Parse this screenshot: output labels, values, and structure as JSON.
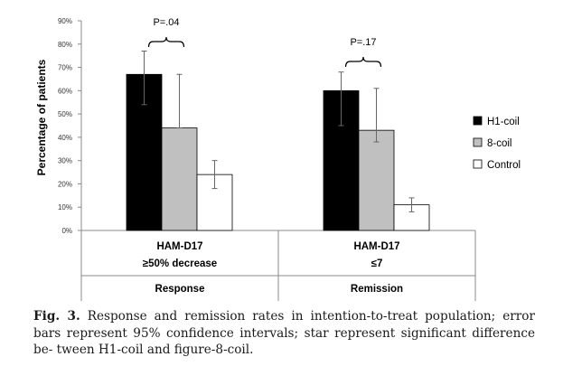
{
  "chart_data": {
    "type": "bar",
    "ylabel": "Percentage of patients",
    "ylim": [
      0,
      90
    ],
    "yticks": [
      "0%",
      "10%",
      "20%",
      "30%",
      "40%",
      "50%",
      "60%",
      "70%",
      "80%",
      "90%"
    ],
    "grid": false,
    "legend_position": "right",
    "series": [
      {
        "name": "H1-coil",
        "color": "#000000",
        "values": [
          67,
          60
        ],
        "ci_low": [
          54,
          45
        ],
        "ci_high": [
          77,
          68
        ]
      },
      {
        "name": "8-coil",
        "color": "#c0c0c0",
        "values": [
          44,
          43
        ],
        "ci_low": [
          44,
          38
        ],
        "ci_high": [
          67,
          61
        ]
      },
      {
        "name": "Control",
        "color": "#ffffff",
        "values": [
          24,
          11
        ],
        "ci_low": [
          18,
          8
        ],
        "ci_high": [
          30,
          14
        ]
      }
    ],
    "groups": [
      {
        "line1": "HAM-D17",
        "line2": "≥50% decrease",
        "category": "Response",
        "pvalue": "P=.04"
      },
      {
        "line1": "HAM-D17",
        "line2": "≤7",
        "category": "Remission",
        "pvalue": "P=.17"
      }
    ]
  },
  "caption": {
    "label": "Fig. 3.",
    "lines": [
      "Response and remission rates in intention-to-treat population; error bars",
      "represent 95% confidence intervals; star represent significant difference be-",
      "tween H1-coil and figure-8-coil."
    ]
  }
}
